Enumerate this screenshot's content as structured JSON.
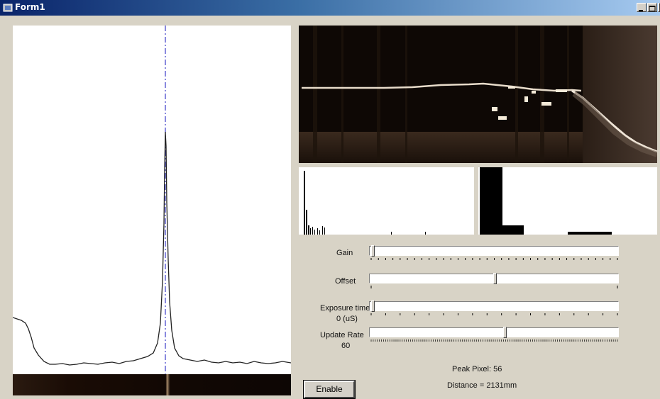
{
  "window": {
    "title": "Form1"
  },
  "controls": {
    "gain": {
      "label": "Gain",
      "value_fraction": 0.0
    },
    "offset": {
      "label": "Offset",
      "value_fraction": 0.5
    },
    "exposure": {
      "label": "Exposure time",
      "value_text": "0  (uS)",
      "value_fraction": 0.0
    },
    "update_rate": {
      "label": "Update Rate",
      "value_text": "60",
      "value_fraction": 0.54
    }
  },
  "status": {
    "peak_pixel": "Peak Pixel: 56",
    "distance": "Distance = 2131mm"
  },
  "buttons": {
    "enable": "Enable"
  }
}
